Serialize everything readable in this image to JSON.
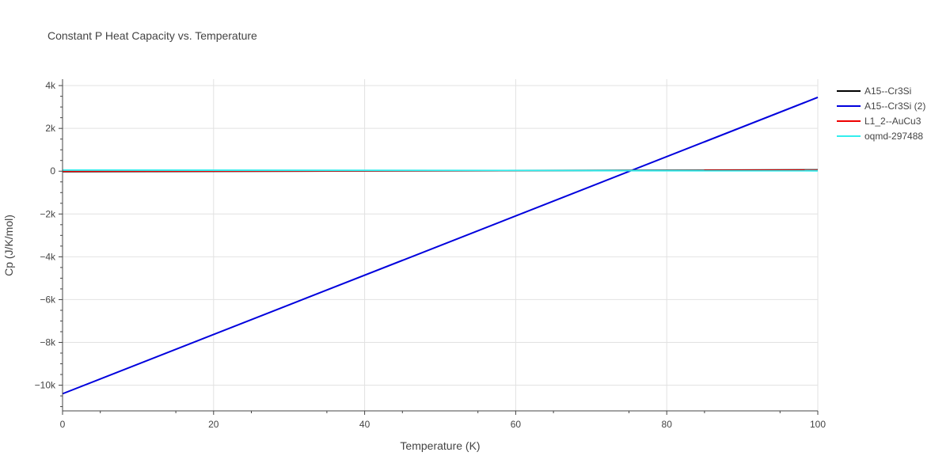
{
  "chart_data": {
    "type": "line",
    "title": "Constant P Heat Capacity vs. Temperature",
    "xlabel": "Temperature (K)",
    "ylabel": "Cp (J/K/mol)",
    "xlim": [
      0,
      100
    ],
    "ylim": [
      -11200,
      4300
    ],
    "grid": true,
    "legend_position": "top-right",
    "x_ticks": [
      0,
      20,
      40,
      60,
      80,
      100
    ],
    "x_tick_labels": [
      "0",
      "20",
      "40",
      "60",
      "80",
      "100"
    ],
    "y_ticks": [
      -10000,
      -8000,
      -6000,
      -4000,
      -2000,
      0,
      2000,
      4000
    ],
    "y_tick_labels": [
      "−10k",
      "−8k",
      "−6k",
      "−4k",
      "−2k",
      "0",
      "2k",
      "4k"
    ],
    "series": [
      {
        "name": "A15--Cr3Si",
        "color": "#000000",
        "x": [
          0,
          100
        ],
        "y": [
          -20,
          60
        ]
      },
      {
        "name": "A15--Cr3Si (2)",
        "color": "#0000dd",
        "x": [
          0,
          100
        ],
        "y": [
          -10400,
          3450
        ]
      },
      {
        "name": "L1_2--AuCu3",
        "color": "#ee0000",
        "x": [
          0,
          100
        ],
        "y": [
          0,
          40
        ]
      },
      {
        "name": "oqmd-297488",
        "color": "#33eeee",
        "x": [
          0,
          100
        ],
        "y": [
          50,
          20
        ]
      }
    ]
  }
}
